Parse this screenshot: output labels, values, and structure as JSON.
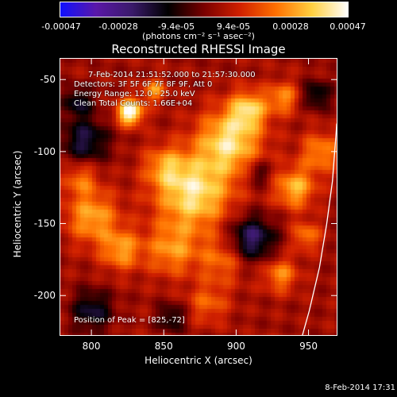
{
  "colorbar": {
    "ticks": [
      "-0.00047",
      "-0.00028",
      "-9.4e-05",
      "9.4e-05",
      "0.00028",
      "0.00047"
    ],
    "unit_label": "(photons cm⁻² s⁻¹ asec⁻²)",
    "colors": [
      "#1010ff",
      "#5a18a8",
      "#3a1a6a",
      "#000000",
      "#7a0000",
      "#d02000",
      "#ff7000",
      "#ffd040",
      "#ffffff"
    ]
  },
  "chart_data": {
    "type": "heatmap",
    "title": "Reconstructed RHESSI Image",
    "xlabel": "Heliocentric X (arcsec)",
    "ylabel": "Heliocentric Y (arcsec)",
    "xlim": [
      778,
      970
    ],
    "ylim": [
      -228,
      -35
    ],
    "xticks": [
      800,
      850,
      900,
      950
    ],
    "yticks": [
      -50,
      -100,
      -150,
      -200
    ],
    "info_lines": [
      "7-Feb-2014 21:51:52.000 to 21:57:30.000",
      "Detectors: 3F 5F 6F 7F 8F 9F, Att 0",
      "Energy Range: 12.0 - 25.0 keV",
      "Clean    Total Counts: 1.66E+04"
    ],
    "peak_text": "Position of Peak = [825,-72]",
    "peak": [
      825,
      -72
    ],
    "limb_color": "#ffffff"
  },
  "timestamp": "8-Feb-2014 17:31"
}
